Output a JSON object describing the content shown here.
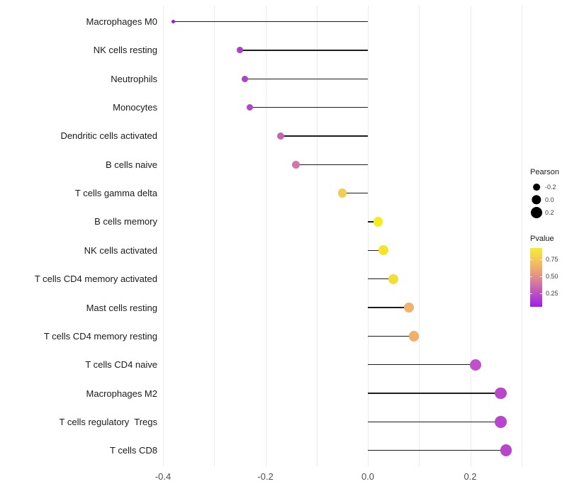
{
  "chart_data": {
    "type": "scatter",
    "subtype": "lollipop",
    "orientation": "horizontal",
    "title": "",
    "xlabel": "",
    "ylabel": "",
    "xlim": [
      -0.45,
      0.31
    ],
    "baseline": 0,
    "grid_on": true,
    "grid_x": [
      -0.4,
      -0.3,
      -0.2,
      -0.1,
      0,
      0.1,
      0.2,
      0.3
    ],
    "x_ticks": [
      {
        "value": -0.4,
        "label": "-0.4"
      },
      {
        "value": -0.2,
        "label": "-0.2"
      },
      {
        "value": 0,
        "label": "0.0"
      },
      {
        "value": 0.2,
        "label": "0.2"
      }
    ],
    "categories": [
      "Macrophages M0",
      "NK cells resting",
      "Neutrophils",
      "Monocytes",
      "Dendritic cells activated",
      "B cells naive",
      "T cells gamma delta",
      "B cells memory",
      "NK cells activated",
      "T cells CD4 memory activated",
      "Mast cells resting",
      "T cells CD4 memory resting",
      "T cells CD4 naive",
      "Macrophages M2",
      "T cells regulatory  Tregs",
      "T cells CD8"
    ],
    "series": [
      {
        "name": "Pearson",
        "values": [
          -0.38,
          -0.25,
          -0.24,
          -0.23,
          -0.17,
          -0.14,
          -0.05,
          0.02,
          0.03,
          0.05,
          0.08,
          0.09,
          0.21,
          0.26,
          0.26,
          0.27
        ]
      }
    ],
    "point_colors": [
      "#9B16E9",
      "#AB41C9",
      "#AB43C8",
      "#AE48C7",
      "#C565B1",
      "#D278A7",
      "#EECF52",
      "#F3EC1E",
      "#F2E52C",
      "#F1DC38",
      "#F0B26E",
      "#F0B06B",
      "#C250CB",
      "#B946CC",
      "#B845CD",
      "#B846CC"
    ],
    "pvalue_approx": [
      0.05,
      0.15,
      0.16,
      0.18,
      0.35,
      0.42,
      0.72,
      0.9,
      0.85,
      0.8,
      0.6,
      0.59,
      0.22,
      0.17,
      0.16,
      0.17
    ],
    "legend": {
      "position": "right",
      "size": {
        "title": "Pearson",
        "dot_color": "#000000",
        "entries": [
          {
            "value": -0.2,
            "label": "-0.2"
          },
          {
            "value": 0,
            "label": "0.0"
          },
          {
            "value": 0.2,
            "label": "0.2"
          }
        ]
      },
      "color": {
        "title": "Pvalue",
        "range": [
          0.05,
          0.92
        ],
        "ticks": [
          {
            "value": 0.75,
            "label": "0.75"
          },
          {
            "value": 0.5,
            "label": "0.50"
          },
          {
            "value": 0.25,
            "label": "0.25"
          }
        ],
        "gradient_bottom_to_top": [
          "#A21AEA",
          "#B23CD3",
          "#C45DB6",
          "#D87E9B",
          "#E89B7E",
          "#F0B765",
          "#F4D44D",
          "#F6EA39"
        ]
      }
    }
  }
}
